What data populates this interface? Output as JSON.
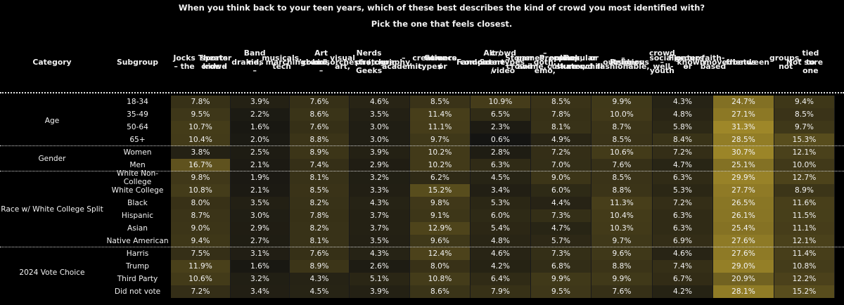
{
  "title_line1": "When you think back to your teen years, which of these best describes the kind of crowd you most identified with?",
  "title_line2": "Pick the one that feels closest.",
  "header_category": "Category",
  "header_subgroup": "Subgroup",
  "colors": {
    "background": "#000000",
    "text": "#f2f2f2",
    "heat_low": "#111111",
    "heat_high": "#a18a29"
  },
  "chart_data": {
    "type": "table",
    "title": "When you think back to your teen years, which of these best describes the kind of crowd you most identified with?",
    "subtitle": "Pick the one that feels closest.",
    "columns": [
      [
        "Jocks – the",
        "sports crowd"
      ],
      [
        "Theater kids –",
        "drama,",
        "musicals, tech",
        "crew"
      ],
      [
        "Band kids –",
        "marching",
        "band,",
        "orchestra,",
        "choir"
      ],
      [
        "Art kids –",
        "visual art,",
        "photography,",
        "creative types"
      ],
      [
        "Nerds / Geeks",
        "– academic,",
        "science, or",
        "computer",
        "types"
      ],
      [
        "Gamers /",
        "Fandom",
        "crowd – video",
        "games, anime,",
        "online culture"
      ],
      [
        "Alt / Scene /",
        "Stoner crowd",
        "– goth, emo,",
        "punk, skater,",
        "or chill",
        "outsiders"
      ],
      [
        "Preps /",
        "Popular crowd",
        "– fashionable,",
        "social, well-",
        "known"
      ],
      [
        "Religious",
        "crowd – youth",
        "group or",
        "faith-based",
        "friends"
      ],
      [
        "Floaters –",
        "moved",
        "between",
        "groups, not",
        "tied to one"
      ],
      [
        "Not sure"
      ]
    ],
    "groups": [
      {
        "category": "Age",
        "rows": [
          {
            "subgroup": "18-34",
            "values": [
              7.8,
              3.9,
              7.6,
              4.6,
              8.5,
              10.9,
              8.5,
              9.9,
              4.3,
              24.7,
              9.4
            ]
          },
          {
            "subgroup": "35-49",
            "values": [
              9.5,
              2.2,
              8.6,
              3.5,
              11.4,
              6.5,
              7.8,
              10.0,
              4.8,
              27.1,
              8.5
            ]
          },
          {
            "subgroup": "50-64",
            "values": [
              10.7,
              1.6,
              7.6,
              3.0,
              11.1,
              2.3,
              8.1,
              8.7,
              5.8,
              31.3,
              9.7
            ]
          },
          {
            "subgroup": "65+",
            "values": [
              10.4,
              2.0,
              8.8,
              3.0,
              9.7,
              0.6,
              4.9,
              8.5,
              8.4,
              28.5,
              15.3
            ]
          }
        ]
      },
      {
        "category": "Gender",
        "rows": [
          {
            "subgroup": "Women",
            "values": [
              3.8,
              2.5,
              8.9,
              3.9,
              10.2,
              2.8,
              7.2,
              10.6,
              7.2,
              30.7,
              12.1
            ]
          },
          {
            "subgroup": "Men",
            "values": [
              16.7,
              2.1,
              7.4,
              2.9,
              10.2,
              6.3,
              7.0,
              7.6,
              4.7,
              25.1,
              10.0
            ]
          }
        ]
      },
      {
        "category": "Race w/ White College Split",
        "rows": [
          {
            "subgroup": "White Non-College",
            "values": [
              9.8,
              1.9,
              8.1,
              3.2,
              6.2,
              4.5,
              9.0,
              8.5,
              6.3,
              29.9,
              12.7
            ]
          },
          {
            "subgroup": "White College",
            "values": [
              10.8,
              2.1,
              8.5,
              3.3,
              15.2,
              3.4,
              6.0,
              8.8,
              5.3,
              27.7,
              8.9
            ]
          },
          {
            "subgroup": "Black",
            "values": [
              8.0,
              3.5,
              8.2,
              4.3,
              9.8,
              5.3,
              4.4,
              11.3,
              7.2,
              26.5,
              11.6
            ]
          },
          {
            "subgroup": "Hispanic",
            "values": [
              8.7,
              3.0,
              7.8,
              3.7,
              9.1,
              6.0,
              7.3,
              10.4,
              6.3,
              26.1,
              11.5
            ]
          },
          {
            "subgroup": "Asian",
            "values": [
              9.0,
              2.9,
              8.2,
              3.7,
              12.9,
              5.4,
              4.7,
              10.3,
              6.3,
              25.4,
              11.1
            ]
          },
          {
            "subgroup": "Native American",
            "values": [
              9.4,
              2.7,
              8.1,
              3.5,
              9.6,
              4.8,
              5.7,
              9.7,
              6.9,
              27.6,
              12.1
            ]
          }
        ]
      },
      {
        "category": "2024 Vote Choice",
        "rows": [
          {
            "subgroup": "Harris",
            "values": [
              7.5,
              3.1,
              7.6,
              4.3,
              12.4,
              4.6,
              7.3,
              9.6,
              4.6,
              27.6,
              11.4
            ]
          },
          {
            "subgroup": "Trump",
            "values": [
              11.9,
              1.6,
              8.9,
              2.6,
              8.0,
              4.2,
              6.8,
              8.8,
              7.4,
              29.0,
              10.8
            ]
          },
          {
            "subgroup": "Third Party",
            "values": [
              10.6,
              3.2,
              4.3,
              5.1,
              10.8,
              6.4,
              9.9,
              9.9,
              6.7,
              20.9,
              12.2
            ]
          },
          {
            "subgroup": "Did not vote",
            "values": [
              7.2,
              3.4,
              4.5,
              3.9,
              8.6,
              7.9,
              9.5,
              7.6,
              4.2,
              28.1,
              15.2
            ]
          }
        ]
      }
    ]
  }
}
